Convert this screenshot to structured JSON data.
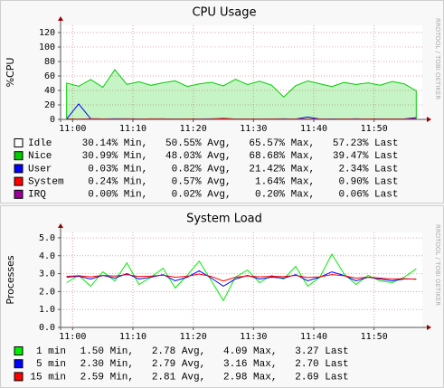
{
  "chart_data": [
    {
      "type": "line",
      "title": "CPU Usage",
      "ylabel": "%CPU",
      "watermark": "RRDTOOL / TOBI OETIKER",
      "ylim": [
        0,
        130
      ],
      "yticks": [
        0,
        20,
        40,
        60,
        80,
        100,
        120
      ],
      "xlim": [
        658,
        718
      ],
      "xticks": [
        {
          "value": 660,
          "label": "11:00"
        },
        {
          "value": 670,
          "label": "11:10"
        },
        {
          "value": 680,
          "label": "11:20"
        },
        {
          "value": 690,
          "label": "11:30"
        },
        {
          "value": 700,
          "label": "11:40"
        },
        {
          "value": 710,
          "label": "11:50"
        }
      ],
      "grid": true,
      "x": [
        659,
        661,
        663,
        665,
        667,
        669,
        671,
        673,
        675,
        677,
        679,
        681,
        683,
        685,
        687,
        689,
        691,
        693,
        695,
        697,
        699,
        701,
        703,
        705,
        707,
        709,
        711,
        713,
        715,
        717
      ],
      "series": [
        {
          "name": "Idle",
          "color": "#ffffff",
          "style": "stack",
          "stats": " 30.14% Min,   50.55% Avg,   65.57% Max,   57.23% Last",
          "values": [
            48.9,
            52.1,
            43.8,
            54.6,
            30.14,
            50.6,
            46.9,
            51.8,
            48.4,
            45.9,
            53.5,
            50.0,
            47.7,
            52.8,
            43.6,
            50.9,
            46.3,
            51.7,
            65.57,
            52.4,
            45.9,
            49.8,
            53.6,
            48.0,
            50.7,
            48.5,
            51.8,
            46.6,
            49.9,
            57.23
          ]
        },
        {
          "name": "Nice",
          "color": "#00cc00",
          "style": "area",
          "stats": " 30.99% Min,   48.03% Avg,   68.68% Max,   39.47% Last",
          "values": [
            50.2,
            45.8,
            55.1,
            44.3,
            68.68,
            48.4,
            52.0,
            47.1,
            50.6,
            53.2,
            45.5,
            49.0,
            51.3,
            46.2,
            55.4,
            48.1,
            52.7,
            47.3,
            30.99,
            46.6,
            53.1,
            49.2,
            45.4,
            51.0,
            48.3,
            50.5,
            47.2,
            52.4,
            49.1,
            39.47
          ]
        },
        {
          "name": "User",
          "color": "#0000ff",
          "style": "line",
          "stats": "  0.03% Min,    0.82% Avg,   21.42% Max,    2.34% Last",
          "values": [
            0.5,
            21.42,
            0.9,
            0.6,
            0.7,
            0.8,
            0.6,
            0.5,
            0.7,
            0.4,
            0.6,
            0.5,
            0.7,
            0.6,
            0.5,
            0.6,
            0.4,
            0.6,
            0.7,
            0.5,
            3.2,
            0.5,
            0.6,
            0.4,
            0.7,
            0.5,
            0.6,
            0.5,
            0.6,
            2.34
          ]
        },
        {
          "name": "System",
          "color": "#ff0000",
          "style": "line",
          "stats": "  0.24% Min,    0.57% Avg,    1.64% Max,    0.90% Last",
          "values": [
            0.6,
            0.5,
            0.7,
            0.6,
            0.5,
            0.6,
            0.5,
            0.7,
            0.6,
            0.5,
            0.6,
            0.5,
            0.6,
            1.64,
            0.5,
            0.6,
            0.5,
            0.6,
            0.5,
            0.6,
            0.5,
            0.6,
            0.24,
            0.6,
            0.5,
            0.6,
            0.5,
            0.6,
            0.5,
            0.9
          ]
        },
        {
          "name": "IRQ",
          "color": "#990099",
          "style": "line",
          "stats": "  0.00% Min,    0.02% Avg,    0.20% Max,    0.06% Last",
          "values": [
            0,
            0.02,
            0,
            0,
            0.2,
            0,
            0.02,
            0,
            0,
            0.02,
            0,
            0,
            0.02,
            0,
            0,
            0,
            0.02,
            0,
            0,
            0.02,
            0,
            0,
            0,
            0.02,
            0,
            0,
            0.02,
            0,
            0,
            0.06
          ]
        }
      ]
    },
    {
      "type": "line",
      "title": "System Load",
      "ylabel": "Processes",
      "watermark": "RRDTOOL / TOBI OETIKER",
      "ylim": [
        0,
        5.3
      ],
      "yticks": [
        {
          "value": 0,
          "label": "0.0"
        },
        {
          "value": 1,
          "label": "1.0"
        },
        {
          "value": 2,
          "label": "2.0"
        },
        {
          "value": 3,
          "label": "3.0"
        },
        {
          "value": 4,
          "label": "4.0"
        },
        {
          "value": 5,
          "label": "5.0"
        }
      ],
      "xlim": [
        658,
        718
      ],
      "xticks": [
        {
          "value": 660,
          "label": "11:00"
        },
        {
          "value": 670,
          "label": "11:10"
        },
        {
          "value": 680,
          "label": "11:20"
        },
        {
          "value": 690,
          "label": "11:30"
        },
        {
          "value": 700,
          "label": "11:40"
        },
        {
          "value": 710,
          "label": "11:50"
        }
      ],
      "grid": true,
      "x": [
        659,
        661,
        663,
        665,
        667,
        669,
        671,
        673,
        675,
        677,
        679,
        681,
        683,
        685,
        687,
        689,
        691,
        693,
        695,
        697,
        699,
        701,
        703,
        705,
        707,
        709,
        711,
        713,
        715,
        717
      ],
      "series": [
        {
          "name": "1 min",
          "color": "#00ee00",
          "style": "line",
          "stats": " 1.50 Min,   2.78 Avg,   4.09 Max,   3.27 Last",
          "values": [
            2.5,
            2.9,
            2.3,
            3.1,
            2.6,
            3.6,
            2.4,
            2.8,
            3.3,
            2.2,
            2.9,
            3.7,
            2.6,
            1.5,
            2.8,
            3.2,
            2.5,
            2.9,
            2.7,
            3.4,
            2.3,
            2.8,
            4.09,
            3.0,
            2.4,
            2.9,
            2.6,
            2.5,
            2.8,
            3.27
          ]
        },
        {
          "name": "5 min",
          "color": "#0000ff",
          "style": "line",
          "stats": " 2.30 Min,   2.79 Avg,   3.16 Max,   2.70 Last",
          "values": [
            2.8,
            2.85,
            2.7,
            2.9,
            2.75,
            3.0,
            2.7,
            2.8,
            2.95,
            2.6,
            2.8,
            3.16,
            2.75,
            2.3,
            2.7,
            2.9,
            2.7,
            2.8,
            2.75,
            2.95,
            2.6,
            2.8,
            3.1,
            2.9,
            2.6,
            2.8,
            2.7,
            2.6,
            2.7,
            2.7
          ]
        },
        {
          "name": "15 min",
          "color": "#ff0000",
          "style": "line",
          "stats": " 2.59 Min,   2.81 Avg,   2.98 Max,   2.69 Last",
          "values": [
            2.85,
            2.88,
            2.82,
            2.9,
            2.86,
            2.95,
            2.84,
            2.86,
            2.92,
            2.8,
            2.85,
            2.98,
            2.84,
            2.59,
            2.8,
            2.87,
            2.82,
            2.85,
            2.83,
            2.9,
            2.78,
            2.82,
            2.95,
            2.88,
            2.75,
            2.8,
            2.75,
            2.7,
            2.72,
            2.69
          ]
        }
      ]
    }
  ]
}
